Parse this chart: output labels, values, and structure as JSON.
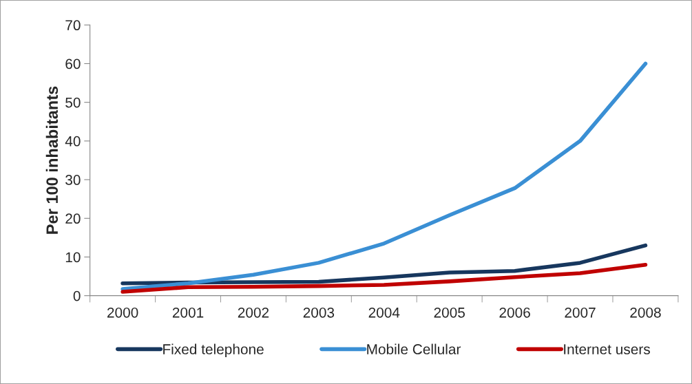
{
  "chart_data": {
    "type": "line",
    "ylabel": "Per 100 inhabitants",
    "categories": [
      "2000",
      "2001",
      "2002",
      "2003",
      "2004",
      "2005",
      "2006",
      "2007",
      "2008"
    ],
    "series": [
      {
        "name": "Fixed telephone",
        "color": "#17375e",
        "values": [
          3.2,
          3.4,
          3.5,
          3.6,
          4.7,
          6.0,
          6.4,
          8.5,
          13
        ]
      },
      {
        "name": "Mobile Cellular",
        "color": "#3a8fd4",
        "values": [
          1.7,
          3.2,
          5.4,
          8.5,
          13.5,
          20.8,
          27.8,
          40,
          60
        ]
      },
      {
        "name": "Internet users",
        "color": "#c00000",
        "values": [
          1.0,
          2.2,
          2.3,
          2.5,
          2.8,
          3.7,
          4.8,
          5.8,
          8.0
        ]
      }
    ],
    "ylim": [
      0,
      70
    ],
    "yticks": [
      0,
      10,
      20,
      30,
      40,
      50,
      60,
      70
    ],
    "grid": false,
    "legend": "bottom",
    "marker": "none",
    "line_style": "solid"
  }
}
